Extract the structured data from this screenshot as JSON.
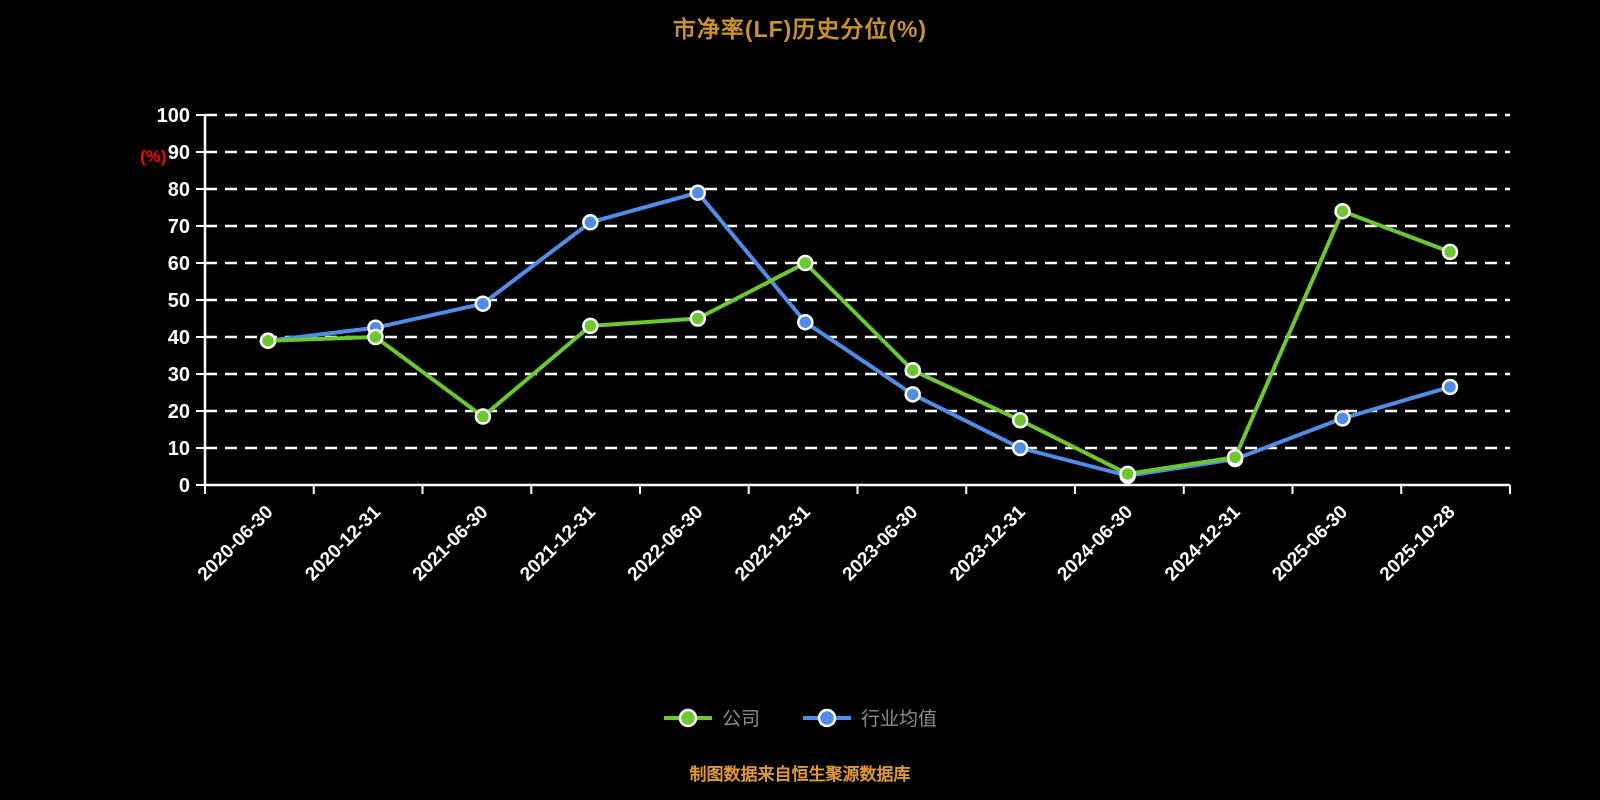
{
  "title": "市净率(LF)历史分位(%)",
  "y_axis_label": "(%)",
  "footer": "制图数据来自恒生聚源数据库",
  "colors": {
    "background": "#000000",
    "title": "#c9922b",
    "footer": "#e09a32",
    "y_axis_label": "#ff0000",
    "axis": "#ffffff",
    "grid": "#ffffff",
    "tick_text": "#ffffff",
    "legend_text": "#8c8c8c",
    "company": "#6cc82e",
    "industry": "#4f8de8"
  },
  "legend": {
    "items": [
      {
        "label": "公司"
      },
      {
        "label": "行业均值"
      }
    ]
  },
  "chart_data": {
    "type": "line",
    "title": "市净率(LF)历史分位(%)",
    "ylabel": "(%)",
    "ylim": [
      0,
      100
    ],
    "y_ticks": [
      0,
      10,
      20,
      30,
      40,
      50,
      60,
      70,
      80,
      90,
      100
    ],
    "grid": "horizontal-dashed",
    "legend_position": "bottom",
    "categories": [
      "2020-06-30",
      "2020-12-31",
      "2021-06-30",
      "2021-12-31",
      "2022-06-30",
      "2022-12-31",
      "2023-06-30",
      "2023-12-31",
      "2024-06-30",
      "2024-12-31",
      "2025-06-30",
      "2025-10-28"
    ],
    "series": [
      {
        "name": "公司",
        "color": "#6cc82e",
        "values": [
          39,
          40,
          18.5,
          43,
          45,
          60,
          31,
          17.5,
          3,
          7.5,
          74,
          63
        ]
      },
      {
        "name": "行业均值",
        "color": "#4f8de8",
        "values": [
          39,
          42.5,
          49,
          71,
          79,
          44,
          24.5,
          10,
          2.5,
          7,
          18,
          26.5
        ]
      }
    ]
  }
}
